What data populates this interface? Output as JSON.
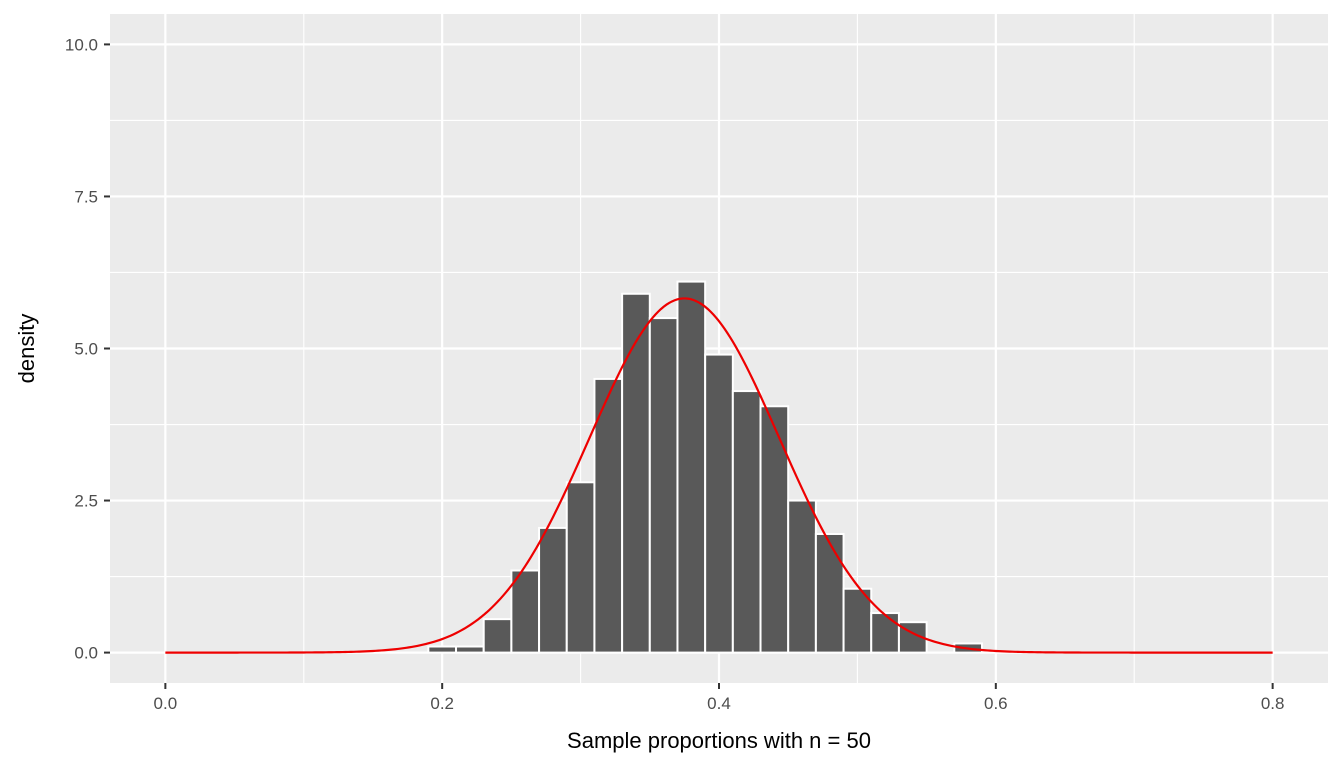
{
  "chart_data": {
    "type": "histogram",
    "title": "",
    "xlabel": "Sample proportions with n = 50",
    "ylabel": "density",
    "xlim": [
      -0.04,
      0.84
    ],
    "ylim": [
      -0.5,
      10.5
    ],
    "x_ticks": [
      0.0,
      0.2,
      0.4,
      0.6,
      0.8
    ],
    "x_tick_labels": [
      "0.0",
      "0.2",
      "0.4",
      "0.6",
      "0.8"
    ],
    "y_ticks": [
      0.0,
      2.5,
      5.0,
      7.5,
      10.0
    ],
    "y_tick_labels": [
      "0.0",
      "2.5",
      "5.0",
      "7.5",
      "10.0"
    ],
    "x_minor_ticks": [
      0.1,
      0.3,
      0.5,
      0.7
    ],
    "y_minor_ticks": [
      1.25,
      3.75,
      6.25,
      8.75
    ],
    "grid": true,
    "bin_width": 0.02,
    "bins": [
      {
        "x0": 0.19,
        "x1": 0.21,
        "density": 0.1
      },
      {
        "x0": 0.21,
        "x1": 0.23,
        "density": 0.1
      },
      {
        "x0": 0.23,
        "x1": 0.25,
        "density": 0.55
      },
      {
        "x0": 0.25,
        "x1": 0.27,
        "density": 1.35
      },
      {
        "x0": 0.27,
        "x1": 0.29,
        "density": 2.05
      },
      {
        "x0": 0.29,
        "x1": 0.31,
        "density": 2.8
      },
      {
        "x0": 0.31,
        "x1": 0.33,
        "density": 4.5
      },
      {
        "x0": 0.33,
        "x1": 0.35,
        "density": 5.9
      },
      {
        "x0": 0.35,
        "x1": 0.37,
        "density": 5.5
      },
      {
        "x0": 0.37,
        "x1": 0.39,
        "density": 6.1
      },
      {
        "x0": 0.39,
        "x1": 0.41,
        "density": 4.9
      },
      {
        "x0": 0.41,
        "x1": 0.43,
        "density": 4.3
      },
      {
        "x0": 0.43,
        "x1": 0.45,
        "density": 4.05
      },
      {
        "x0": 0.45,
        "x1": 0.47,
        "density": 2.5
      },
      {
        "x0": 0.47,
        "x1": 0.49,
        "density": 1.95
      },
      {
        "x0": 0.49,
        "x1": 0.51,
        "density": 1.05
      },
      {
        "x0": 0.51,
        "x1": 0.53,
        "density": 0.65
      },
      {
        "x0": 0.53,
        "x1": 0.55,
        "density": 0.5
      },
      {
        "x0": 0.57,
        "x1": 0.59,
        "density": 0.15
      }
    ],
    "normal_curve": {
      "mean": 0.375,
      "sd": 0.0685,
      "x_range": [
        0.0,
        0.8
      ]
    },
    "colors": {
      "panel": "#ebebeb",
      "grid": "#ffffff",
      "bar_fill": "#595959",
      "bar_outline": "#ffffff",
      "curve": "#ee0000",
      "tick_text": "#4d4d4d",
      "axis_text": "#000000"
    }
  }
}
